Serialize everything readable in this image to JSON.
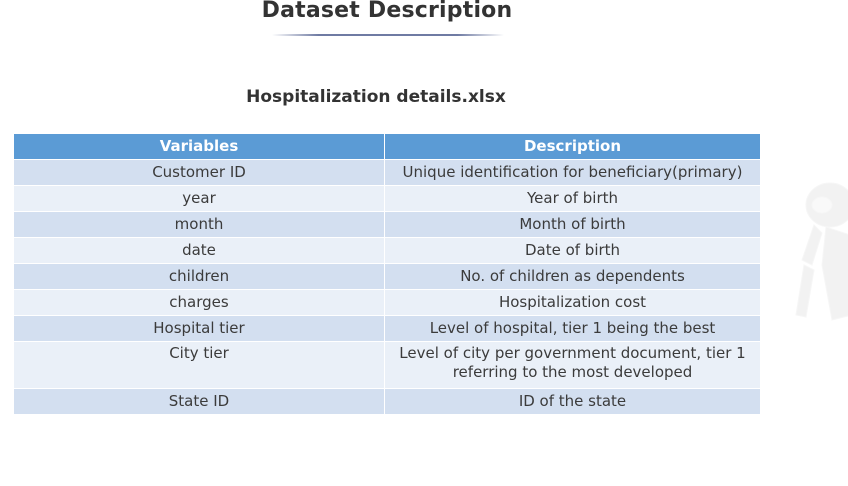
{
  "page": {
    "title": "Dataset Description",
    "subtitle": "Hospitalization details.xlsx"
  },
  "table": {
    "headers": [
      "Variables",
      "Description"
    ],
    "rows": [
      {
        "variable": "Customer ID",
        "description": "Unique identification for beneficiary(primary)"
      },
      {
        "variable": "year",
        "description": "Year of birth"
      },
      {
        "variable": "month",
        "description": "Month of birth"
      },
      {
        "variable": "date",
        "description": "Date of birth"
      },
      {
        "variable": "children",
        "description": "No. of children as dependents"
      },
      {
        "variable": "charges",
        "description": "Hospitalization cost"
      },
      {
        "variable": "Hospital tier",
        "description": "Level of hospital, tier 1 being the best"
      },
      {
        "variable": "City tier",
        "description": "Level of city per government document, tier 1 referring to the most developed"
      },
      {
        "variable": "State ID",
        "description": "ID of the state"
      }
    ]
  },
  "colors": {
    "header_bg": "#5b9bd5",
    "row_dark": "#d3dff0",
    "row_light": "#eaf0f8"
  }
}
